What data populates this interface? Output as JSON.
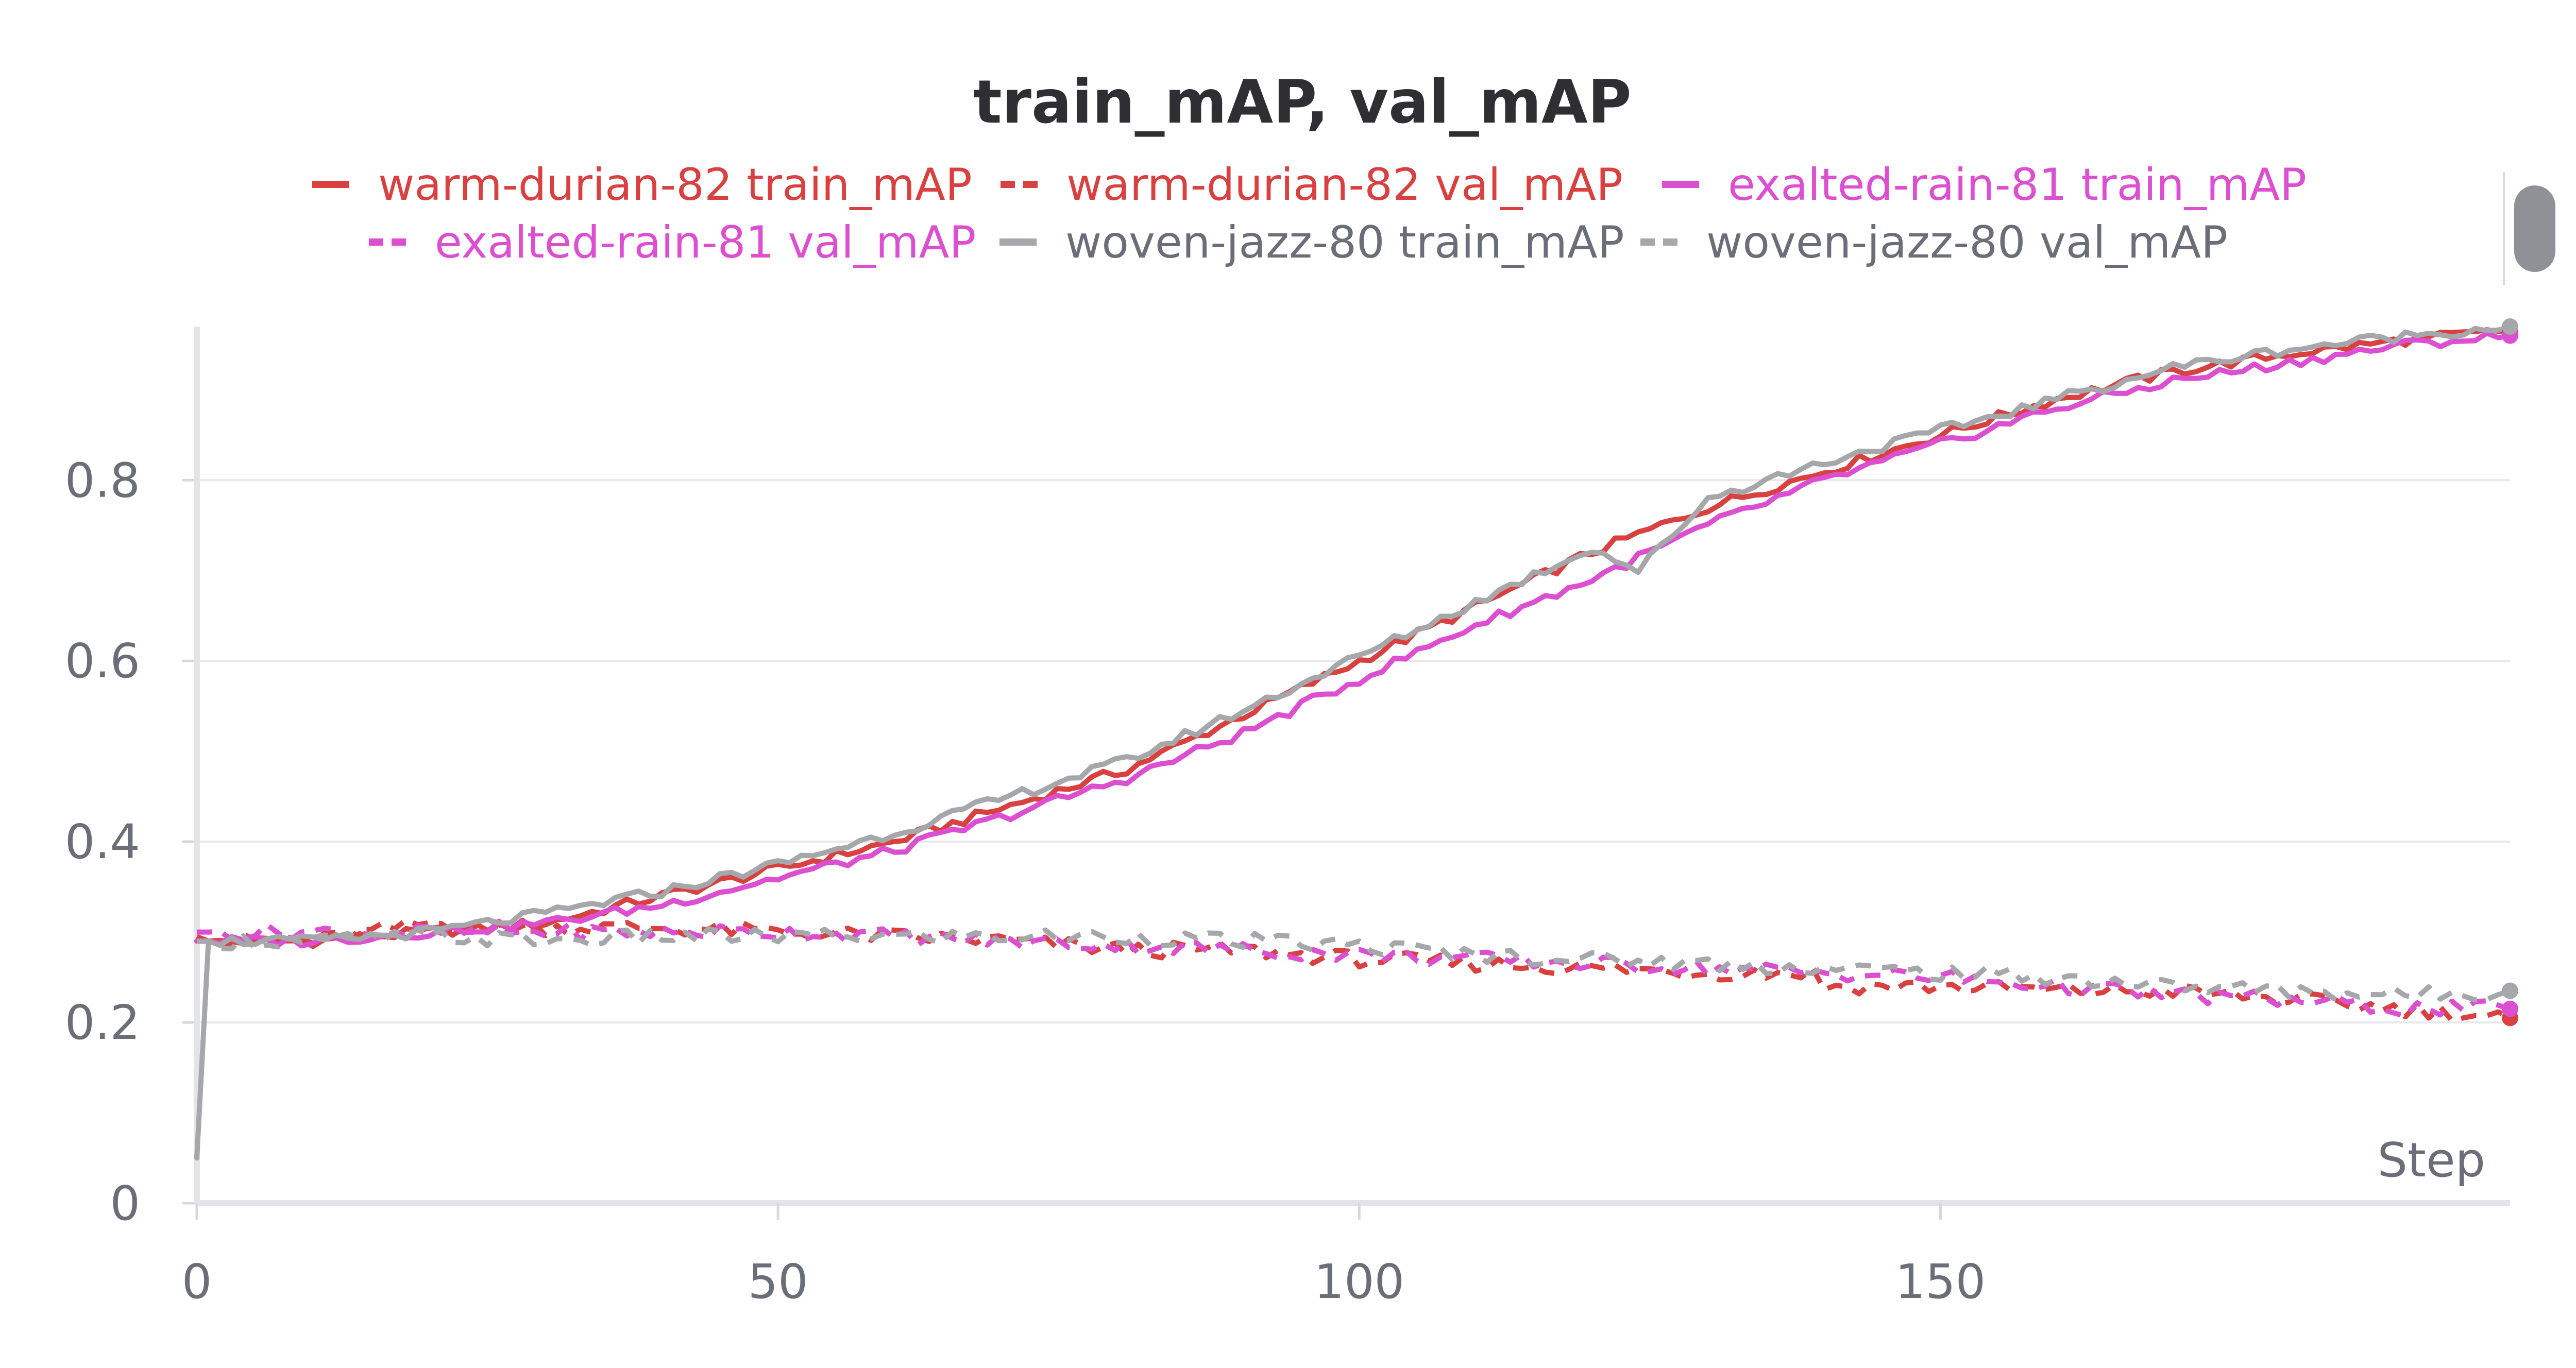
{
  "chart_data": {
    "type": "line",
    "title": "train_mAP, val_mAP",
    "xlabel": "Step",
    "ylabel": "",
    "xlim": [
      0,
      199
    ],
    "ylim": [
      0,
      0.97
    ],
    "x_ticks": [
      0,
      50,
      100,
      150
    ],
    "y_ticks": [
      0,
      0.2,
      0.4,
      0.6,
      0.8
    ],
    "x_tick_labels": [
      "0",
      "50",
      "100",
      "150"
    ],
    "y_tick_labels": [
      "0",
      "0.2",
      "0.4",
      "0.6",
      "0.8"
    ],
    "grid": true,
    "legend_position": "top",
    "series": [
      {
        "name": "warm-durian-82 train_mAP",
        "color": "#d94040",
        "dash": "solid",
        "x": [
          0,
          1,
          10,
          20,
          30,
          40,
          50,
          60,
          70,
          80,
          90,
          100,
          110,
          120,
          130,
          140,
          150,
          160,
          170,
          180,
          190,
          199
        ],
        "y": [
          0.29,
          0.29,
          0.29,
          0.3,
          0.31,
          0.34,
          0.37,
          0.4,
          0.44,
          0.48,
          0.54,
          0.6,
          0.66,
          0.72,
          0.77,
          0.81,
          0.85,
          0.89,
          0.92,
          0.94,
          0.955,
          0.965
        ]
      },
      {
        "name": "warm-durian-82 val_mAP",
        "color": "#d94040",
        "dash": "dashed",
        "x": [
          0,
          1,
          10,
          20,
          30,
          40,
          50,
          60,
          70,
          80,
          90,
          100,
          110,
          120,
          130,
          139,
          140,
          150,
          160,
          170,
          180,
          190,
          199
        ],
        "y": [
          0.295,
          0.29,
          0.29,
          0.31,
          0.305,
          0.305,
          0.3,
          0.295,
          0.29,
          0.28,
          0.28,
          0.27,
          0.265,
          0.26,
          0.255,
          0.255,
          0.24,
          0.24,
          0.235,
          0.235,
          0.225,
          0.215,
          0.205
        ]
      },
      {
        "name": "exalted-rain-81 train_mAP",
        "color": "#dc4fd0",
        "dash": "solid",
        "x": [
          0,
          1,
          10,
          20,
          30,
          40,
          50,
          60,
          70,
          80,
          90,
          100,
          110,
          120,
          130,
          140,
          150,
          160,
          170,
          180,
          190,
          199
        ],
        "y": [
          0.29,
          0.29,
          0.29,
          0.3,
          0.31,
          0.33,
          0.36,
          0.39,
          0.43,
          0.47,
          0.52,
          0.58,
          0.64,
          0.69,
          0.75,
          0.8,
          0.84,
          0.88,
          0.91,
          0.93,
          0.95,
          0.96
        ]
      },
      {
        "name": "exalted-rain-81 val_mAP",
        "color": "#dc4fd0",
        "dash": "dashed",
        "x": [
          0,
          1,
          10,
          20,
          30,
          40,
          50,
          60,
          70,
          80,
          90,
          100,
          110,
          120,
          130,
          140,
          150,
          160,
          170,
          180,
          190,
          199
        ],
        "y": [
          0.3,
          0.3,
          0.3,
          0.3,
          0.3,
          0.3,
          0.3,
          0.295,
          0.29,
          0.285,
          0.28,
          0.275,
          0.27,
          0.265,
          0.26,
          0.255,
          0.25,
          0.24,
          0.23,
          0.225,
          0.215,
          0.215
        ]
      },
      {
        "name": "woven-jazz-80 train_mAP",
        "color": "#a5a7ab",
        "dash": "solid",
        "x": [
          0,
          1,
          10,
          20,
          30,
          40,
          50,
          60,
          70,
          80,
          90,
          100,
          110,
          120,
          124,
          130,
          140,
          150,
          160,
          170,
          180,
          190,
          199
        ],
        "y": [
          0.05,
          0.29,
          0.29,
          0.3,
          0.32,
          0.345,
          0.375,
          0.41,
          0.45,
          0.49,
          0.545,
          0.605,
          0.665,
          0.725,
          0.7,
          0.78,
          0.82,
          0.855,
          0.89,
          0.925,
          0.945,
          0.96,
          0.97
        ]
      },
      {
        "name": "woven-jazz-80 val_mAP",
        "color": "#a5a7ab",
        "dash": "dashed",
        "x": [
          0,
          1,
          10,
          20,
          30,
          40,
          50,
          60,
          70,
          80,
          90,
          100,
          110,
          120,
          130,
          140,
          150,
          160,
          170,
          180,
          190,
          199
        ],
        "y": [
          0.29,
          0.29,
          0.29,
          0.295,
          0.29,
          0.295,
          0.295,
          0.295,
          0.295,
          0.295,
          0.29,
          0.285,
          0.275,
          0.27,
          0.265,
          0.26,
          0.255,
          0.25,
          0.24,
          0.235,
          0.23,
          0.235
        ]
      }
    ]
  }
}
